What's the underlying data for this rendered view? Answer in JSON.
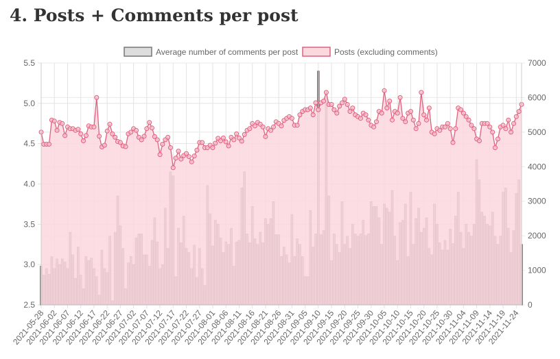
{
  "heading": "4. Posts + Comments per post",
  "chart_data": {
    "type": "bar+line",
    "legend_position": "top",
    "grid": true,
    "colors": {
      "bars_fill": "#b0a0a3",
      "bars_border": "#6e6e6e",
      "line": "#e0607e",
      "area": "#fbd7de"
    },
    "x_tick_labels": [
      "2021-05-28",
      "2021-06-02",
      "2021-06-07",
      "2021-06-12",
      "2021-06-17",
      "2021-06-22",
      "2021-06-27",
      "2021-07-02",
      "2021-07-07",
      "2021-07-12",
      "2021-07-17",
      "2021-07-22",
      "2021-07-27",
      "2021-08-01",
      "2021-08-06",
      "2021-08-11",
      "2021-08-16",
      "2021-08-21",
      "2021-08-26",
      "2021-08-31",
      "2021-09-05",
      "2021-09-10",
      "2021-09-15",
      "2021-09-20",
      "2021-09-25",
      "2021-09-30",
      "2021-10-05",
      "2021-10-10",
      "2021-10-15",
      "2021-10-20",
      "2021-10-25",
      "2021-10-30",
      "2021-11-04",
      "2021-11-09",
      "2021-11-14",
      "2021-11-19",
      "2021-11-24"
    ],
    "y_left": {
      "range": [
        2.5,
        5.5
      ],
      "ticks": [
        "2.5",
        "3.0",
        "3.5",
        "4.0",
        "4.5",
        "5.0",
        "5.5"
      ]
    },
    "y_right": {
      "range": [
        0,
        7000
      ],
      "ticks": [
        "0",
        "1000",
        "2000",
        "3000",
        "4000",
        "5000",
        "6000",
        "7000"
      ]
    },
    "series": [
      {
        "name": "Average number of comments per post",
        "type": "bar",
        "axis": "left",
        "values": [
          2.98,
          2.87,
          2.95,
          2.88,
          3.1,
          2.95,
          3.07,
          3.0,
          3.07,
          3.03,
          2.95,
          3.4,
          3.12,
          2.83,
          3.22,
          2.87,
          2.7,
          3.1,
          3.05,
          3.08,
          2.95,
          2.85,
          2.62,
          3.18,
          2.95,
          2.9,
          3.35,
          2.55,
          3.4,
          3.85,
          3.48,
          3.2,
          2.7,
          3.02,
          3.1,
          3.0,
          3.33,
          3.38,
          3.38,
          3.12,
          3.12,
          2.98,
          3.3,
          3.58,
          3.28,
          2.95,
          3.0,
          3.7,
          3.2,
          4.15,
          4.1,
          2.85,
          3.45,
          3.27,
          3.6,
          3.2,
          3.15,
          2.95,
          3.24,
          2.84,
          3.2,
          2.95,
          2.74,
          3.98,
          3.63,
          3.23,
          3.55,
          3.5,
          3.33,
          3.15,
          3.28,
          3.25,
          3.45,
          2.98,
          3.28,
          3.3,
          3.95,
          4.15,
          3.38,
          3.27,
          3.72,
          3.32,
          3.25,
          3.4,
          3.27,
          3.57,
          3.5,
          3.57,
          3.78,
          3.37,
          3.37,
          3.1,
          3.22,
          3.12,
          3.02,
          3.62,
          3.1,
          3.32,
          3.25,
          3.1,
          2.85,
          2.85,
          3.67,
          3.22,
          3.38,
          5.4,
          3.37,
          3.42,
          5.07,
          3.85,
          3.05,
          3.38,
          3.25,
          3.15,
          3.78,
          3.25,
          3.35,
          3.2,
          3.5,
          3.38,
          3.35,
          3.38,
          3.55,
          3.36,
          3.38,
          3.78,
          3.72,
          3.72,
          3.58,
          3.25,
          3.75,
          3.7,
          3.65,
          3.92,
          3.35,
          3.05,
          3.52,
          3.55,
          3.75,
          3.1,
          3.9,
          3.25,
          3.57,
          3.7,
          3.4,
          3.45,
          3.58,
          3.2,
          3.12,
          3.75,
          3.5,
          3.27,
          3.18,
          3.3,
          3.18,
          3.44,
          3.26,
          3.6,
          3.9,
          3.4,
          3.2,
          3.5,
          3.4,
          3.35,
          3.5,
          4.3,
          4.05,
          3.65,
          3.6,
          3.5,
          3.48,
          3.65,
          3.35,
          3.25,
          3.35,
          3.9,
          3.95,
          3.45,
          3.15,
          3.42,
          3.88,
          4.05,
          3.25
        ]
      },
      {
        "name": "Posts (excluding comments)",
        "type": "line-area",
        "axis": "right",
        "values": [
          5000,
          4650,
          4650,
          4650,
          5350,
          5320,
          5050,
          5280,
          5250,
          4900,
          5150,
          5100,
          5100,
          5050,
          5080,
          4950,
          4750,
          4900,
          5180,
          5150,
          5150,
          6000,
          4880,
          4570,
          4620,
          5030,
          5230,
          4950,
          4850,
          4730,
          4700,
          4600,
          4580,
          4950,
          5000,
          5100,
          5050,
          4850,
          4780,
          4880,
          5100,
          5280,
          5120,
          4870,
          4780,
          4350,
          4650,
          4780,
          4850,
          4550,
          3970,
          4250,
          4450,
          4220,
          4320,
          4380,
          4290,
          4140,
          4310,
          4480,
          4700,
          4700,
          4550,
          4550,
          4620,
          4550,
          4680,
          4820,
          4750,
          4830,
          4720,
          4600,
          4850,
          4780,
          4950,
          4830,
          4740,
          4930,
          5050,
          5100,
          5250,
          5180,
          5280,
          5230,
          5150,
          4870,
          5100,
          5050,
          5150,
          5300,
          5250,
          5180,
          5340,
          5400,
          5450,
          5400,
          5200,
          5200,
          5500,
          5600,
          5650,
          5650,
          5700,
          5500,
          5850,
          5650,
          5850,
          5900,
          6150,
          5800,
          5800,
          5650,
          5550,
          5750,
          5850,
          5950,
          5800,
          5600,
          5700,
          5500,
          5450,
          5400,
          5550,
          5500,
          5350,
          5200,
          5150,
          5300,
          5600,
          5550,
          6200,
          5700,
          5900,
          5350,
          5600,
          5550,
          6000,
          5400,
          5300,
          5550,
          5600,
          5350,
          5100,
          5250,
          6150,
          5500,
          5350,
          5700,
          5000,
          4950,
          5100,
          5050,
          5150,
          5150,
          5250,
          5100,
          4700,
          5100,
          5700,
          5650,
          5550,
          5450,
          5350,
          5200,
          5100,
          4800,
          4750,
          5250,
          5250,
          5250,
          5150,
          5000,
          4550,
          4800,
          5150,
          5200,
          5100,
          5350,
          5000,
          5250,
          5450,
          5600,
          5800
        ]
      }
    ]
  }
}
